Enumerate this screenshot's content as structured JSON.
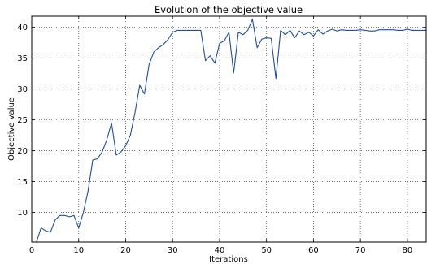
{
  "chart_data": {
    "type": "line",
    "title": "Evolution of the objective value",
    "xlabel": "Iterations",
    "ylabel": "Objective value",
    "xlim": [
      0,
      84
    ],
    "ylim": [
      5.2,
      41.8
    ],
    "xticks": [
      0,
      10,
      20,
      30,
      40,
      50,
      60,
      70,
      80
    ],
    "yticks": [
      10,
      15,
      20,
      25,
      30,
      35,
      40
    ],
    "grid": true,
    "series_color": "#1f4e9c",
    "series": [
      {
        "x": [
          0,
          1,
          2,
          3,
          4,
          5,
          6,
          7,
          8,
          9,
          10,
          11,
          12,
          13,
          14,
          15,
          16,
          17,
          18,
          19,
          20,
          21,
          22,
          23,
          24,
          25,
          26,
          27,
          28,
          29,
          30,
          31,
          32,
          33,
          34,
          35,
          36,
          37,
          38,
          39,
          40,
          41,
          42,
          43,
          44,
          45,
          46,
          47,
          48,
          49,
          50,
          51,
          52,
          53,
          54,
          55,
          56,
          57,
          58,
          59,
          60,
          61,
          62,
          63,
          64,
          65,
          66,
          67,
          68,
          69,
          70,
          71,
          72,
          73,
          74,
          75,
          76,
          77,
          78,
          79,
          80,
          81,
          82,
          83,
          84
        ],
        "y": [
          3.5,
          5.2,
          7.5,
          7.0,
          6.8,
          8.8,
          9.5,
          9.5,
          9.3,
          9.5,
          7.5,
          10.0,
          13.5,
          18.5,
          18.7,
          19.8,
          21.8,
          24.5,
          19.3,
          19.8,
          20.8,
          22.5,
          26.2,
          30.6,
          29.2,
          34.0,
          36.0,
          36.7,
          37.2,
          38.0,
          39.2,
          39.5,
          39.5,
          39.5,
          39.5,
          39.5,
          39.5,
          34.6,
          35.4,
          34.2,
          37.4,
          37.8,
          39.2,
          32.6,
          39.2,
          38.8,
          39.5,
          41.3,
          36.7,
          38.1,
          38.3,
          38.2,
          31.7,
          39.5,
          38.8,
          39.5,
          38.3,
          39.4,
          38.8,
          39.2,
          38.6,
          39.6,
          38.9,
          39.4,
          39.7,
          39.4,
          39.6,
          39.5,
          39.5,
          39.5,
          39.6,
          39.5,
          39.4,
          39.4,
          39.6,
          39.6,
          39.6,
          39.6,
          39.5,
          39.5,
          39.7,
          39.5,
          39.5,
          39.5,
          39.5
        ]
      }
    ]
  }
}
